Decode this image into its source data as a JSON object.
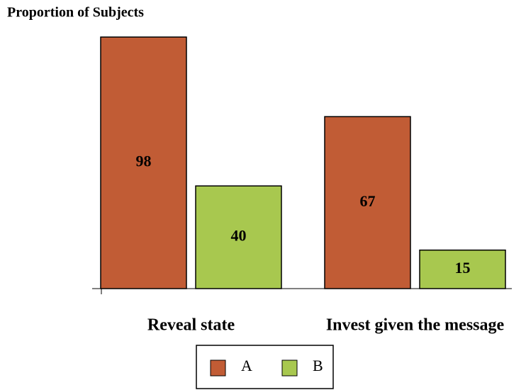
{
  "chart_data": {
    "type": "bar",
    "ylabel": "Proportion of Subjects",
    "categories": [
      "Reveal state",
      "Invest given the message"
    ],
    "series": [
      {
        "name": "A",
        "color": "#c15c35",
        "values": [
          98,
          67
        ]
      },
      {
        "name": "B",
        "color": "#a8c84f",
        "values": [
          40,
          15
        ]
      }
    ],
    "ylim": [
      0,
      100
    ]
  }
}
